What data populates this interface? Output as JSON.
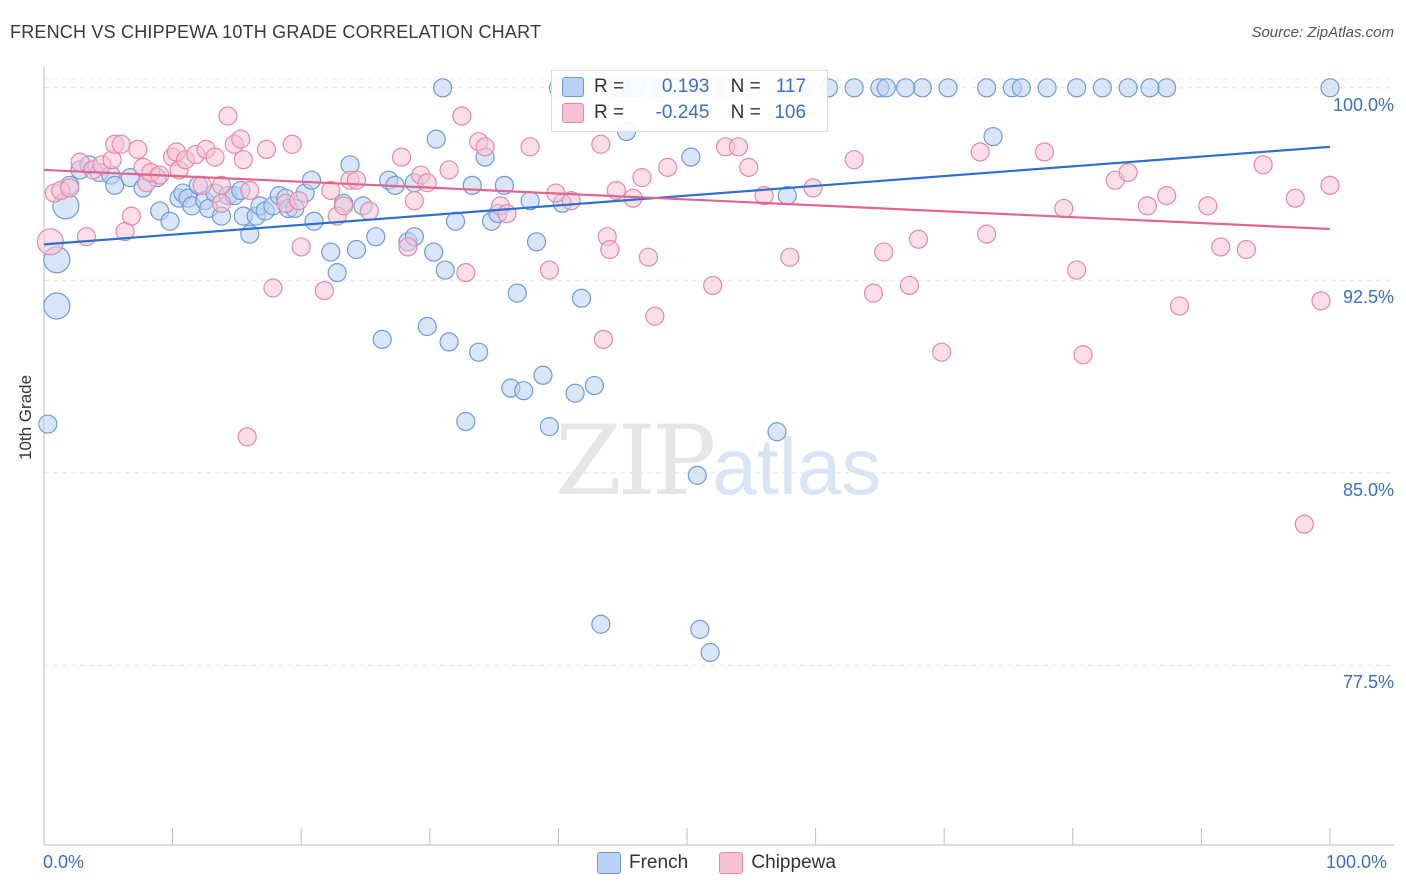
{
  "title": "FRENCH VS CHIPPEWA 10TH GRADE CORRELATION CHART",
  "source": "Source: ZipAtlas.com",
  "watermark": {
    "zip": "ZIP",
    "atlas": "atlas"
  },
  "stats": {
    "french": {
      "r_label": "R =",
      "r": "0.193",
      "n_label": "N =",
      "n": "117"
    },
    "chippewa": {
      "r_label": "R =",
      "r": "-0.245",
      "n_label": "N =",
      "n": "106"
    }
  },
  "colors": {
    "french_fill": "#b9d1f5",
    "french_stroke": "#6f9ad9",
    "french_line": "#2c6fcf",
    "chippewa_fill": "#f7c3d3",
    "chippewa_stroke": "#e38aa7",
    "chippewa_line": "#e06690",
    "tick_text": "#3a6fc9"
  },
  "chart_data": {
    "type": "scatter",
    "title": "FRENCH VS CHIPPEWA 10TH GRADE CORRELATION CHART",
    "xlabel": "",
    "ylabel": "10th Grade",
    "xlim": [
      0,
      100
    ],
    "ylim": [
      70.5,
      101.2
    ],
    "x_tick_labels": [
      "0.0%",
      "100.0%"
    ],
    "y_ticks": [
      100.0,
      92.5,
      85.0,
      77.5
    ],
    "y_tick_labels": [
      "100.0%",
      "92.5%",
      "85.0%",
      "77.5%"
    ],
    "grid": true,
    "legend_position": "bottom-center",
    "series": [
      {
        "name": "French",
        "trend": [
          [
            0,
            93.9
          ],
          [
            100,
            97.7
          ]
        ],
        "points": [
          [
            0.3,
            86.9
          ],
          [
            1.0,
            93.3
          ],
          [
            1.0,
            91.5
          ],
          [
            1.7,
            95.4
          ],
          [
            2.0,
            96.2
          ],
          [
            2.8,
            96.8
          ],
          [
            3.5,
            97.0
          ],
          [
            4.3,
            96.7
          ],
          [
            5.2,
            96.6
          ],
          [
            5.5,
            96.2
          ],
          [
            6.7,
            96.5
          ],
          [
            7.7,
            96.1
          ],
          [
            8.8,
            96.5
          ],
          [
            9.0,
            95.2
          ],
          [
            9.8,
            94.8
          ],
          [
            10.5,
            95.7
          ],
          [
            10.8,
            95.9
          ],
          [
            11.2,
            95.7
          ],
          [
            11.5,
            95.4
          ],
          [
            12.0,
            96.2
          ],
          [
            12.5,
            95.6
          ],
          [
            12.8,
            95.3
          ],
          [
            13.3,
            95.9
          ],
          [
            13.8,
            95.0
          ],
          [
            14.3,
            95.8
          ],
          [
            14.8,
            95.8
          ],
          [
            15.3,
            96.0
          ],
          [
            15.5,
            95.0
          ],
          [
            16.0,
            94.3
          ],
          [
            16.5,
            95.0
          ],
          [
            16.8,
            95.4
          ],
          [
            17.2,
            95.2
          ],
          [
            17.8,
            95.4
          ],
          [
            18.3,
            95.8
          ],
          [
            18.8,
            95.7
          ],
          [
            19.0,
            95.3
          ],
          [
            19.5,
            95.3
          ],
          [
            20.3,
            95.9
          ],
          [
            20.8,
            96.4
          ],
          [
            21.0,
            94.8
          ],
          [
            22.3,
            93.6
          ],
          [
            22.8,
            92.8
          ],
          [
            23.3,
            95.5
          ],
          [
            23.8,
            97.0
          ],
          [
            24.3,
            93.7
          ],
          [
            24.8,
            95.4
          ],
          [
            25.8,
            94.2
          ],
          [
            26.3,
            90.2
          ],
          [
            26.8,
            96.4
          ],
          [
            27.3,
            96.2
          ],
          [
            28.3,
            94.0
          ],
          [
            28.8,
            94.2
          ],
          [
            28.8,
            96.3
          ],
          [
            29.8,
            90.7
          ],
          [
            30.3,
            93.6
          ],
          [
            30.5,
            98.0
          ],
          [
            31.2,
            92.9
          ],
          [
            31.5,
            90.1
          ],
          [
            32.0,
            94.8
          ],
          [
            32.8,
            87.0
          ],
          [
            33.3,
            96.2
          ],
          [
            33.8,
            89.7
          ],
          [
            34.3,
            97.3
          ],
          [
            34.8,
            94.8
          ],
          [
            35.3,
            95.1
          ],
          [
            35.8,
            96.2
          ],
          [
            36.3,
            88.3
          ],
          [
            36.8,
            92.0
          ],
          [
            37.3,
            88.2
          ],
          [
            37.8,
            95.6
          ],
          [
            38.3,
            94.0
          ],
          [
            38.8,
            88.8
          ],
          [
            39.3,
            86.8
          ],
          [
            40.3,
            95.5
          ],
          [
            41.3,
            88.1
          ],
          [
            41.8,
            91.8
          ],
          [
            42.8,
            88.4
          ],
          [
            43.3,
            79.1
          ],
          [
            44.8,
            100.0
          ],
          [
            45.5,
            100.0
          ],
          [
            45.3,
            98.3
          ],
          [
            47.0,
            100.0
          ],
          [
            50.3,
            97.3
          ],
          [
            50.8,
            84.9
          ],
          [
            51.0,
            78.9
          ],
          [
            51.8,
            78.0
          ],
          [
            57.0,
            86.6
          ],
          [
            57.8,
            95.8
          ],
          [
            61.0,
            100.0
          ],
          [
            65.0,
            100.0
          ],
          [
            65.5,
            100.0
          ],
          [
            68.3,
            100.0
          ],
          [
            70.3,
            100.0
          ],
          [
            73.3,
            100.0
          ],
          [
            73.8,
            98.1
          ],
          [
            75.3,
            100.0
          ],
          [
            80.3,
            100.0
          ],
          [
            82.3,
            100.0
          ],
          [
            84.3,
            100.0
          ],
          [
            87.3,
            100.0
          ],
          [
            100.0,
            100.0
          ],
          [
            31.0,
            100.0
          ],
          [
            40.0,
            100.0
          ],
          [
            42.0,
            100.0
          ],
          [
            44.0,
            100.0
          ],
          [
            48.0,
            100.0
          ],
          [
            49.0,
            100.0
          ],
          [
            53.0,
            100.0
          ],
          [
            55.0,
            100.0
          ],
          [
            59.0,
            100.0
          ],
          [
            63.0,
            100.0
          ],
          [
            67.0,
            100.0
          ],
          [
            78.0,
            100.0
          ],
          [
            86.0,
            100.0
          ],
          [
            76.0,
            100.0
          ],
          [
            58.0,
            100.0
          ],
          [
            52.0,
            100.0
          ],
          [
            46.0,
            100.0
          ]
        ]
      },
      {
        "name": "Chippewa",
        "trend": [
          [
            0,
            96.8
          ],
          [
            100,
            94.5
          ]
        ],
        "points": [
          [
            0.5,
            94.0
          ],
          [
            0.8,
            95.9
          ],
          [
            1.3,
            96.0
          ],
          [
            2.0,
            96.1
          ],
          [
            2.8,
            97.1
          ],
          [
            3.3,
            94.2
          ],
          [
            3.8,
            96.8
          ],
          [
            4.5,
            97.0
          ],
          [
            5.3,
            97.2
          ],
          [
            5.5,
            97.8
          ],
          [
            6.0,
            97.8
          ],
          [
            6.3,
            94.4
          ],
          [
            6.8,
            95.0
          ],
          [
            7.3,
            97.6
          ],
          [
            7.7,
            96.9
          ],
          [
            8.0,
            96.3
          ],
          [
            8.3,
            96.7
          ],
          [
            9.0,
            96.6
          ],
          [
            10.0,
            97.3
          ],
          [
            10.3,
            97.5
          ],
          [
            10.5,
            96.8
          ],
          [
            11.0,
            97.2
          ],
          [
            11.8,
            97.4
          ],
          [
            12.3,
            96.2
          ],
          [
            12.6,
            97.6
          ],
          [
            13.3,
            97.3
          ],
          [
            13.8,
            96.2
          ],
          [
            13.8,
            95.5
          ],
          [
            14.3,
            98.9
          ],
          [
            14.8,
            97.8
          ],
          [
            15.3,
            98.0
          ],
          [
            15.5,
            97.2
          ],
          [
            15.8,
            86.4
          ],
          [
            16.0,
            96.0
          ],
          [
            17.3,
            97.6
          ],
          [
            17.8,
            92.2
          ],
          [
            18.8,
            95.5
          ],
          [
            19.3,
            97.8
          ],
          [
            19.8,
            95.6
          ],
          [
            20.0,
            93.8
          ],
          [
            21.8,
            92.1
          ],
          [
            22.3,
            96.0
          ],
          [
            22.8,
            95.0
          ],
          [
            23.3,
            95.4
          ],
          [
            23.8,
            96.4
          ],
          [
            24.3,
            96.4
          ],
          [
            25.3,
            95.2
          ],
          [
            27.8,
            97.3
          ],
          [
            28.3,
            93.8
          ],
          [
            28.8,
            95.6
          ],
          [
            29.3,
            96.6
          ],
          [
            29.8,
            96.3
          ],
          [
            31.5,
            96.8
          ],
          [
            32.5,
            98.9
          ],
          [
            32.8,
            92.8
          ],
          [
            33.8,
            97.9
          ],
          [
            34.3,
            97.7
          ],
          [
            35.5,
            95.4
          ],
          [
            36.0,
            95.1
          ],
          [
            37.8,
            97.7
          ],
          [
            39.3,
            92.9
          ],
          [
            39.8,
            95.9
          ],
          [
            40.5,
            100.0
          ],
          [
            41.0,
            95.6
          ],
          [
            43.3,
            97.8
          ],
          [
            43.5,
            90.2
          ],
          [
            43.8,
            94.2
          ],
          [
            44.0,
            93.7
          ],
          [
            44.5,
            96.0
          ],
          [
            45.8,
            95.7
          ],
          [
            46.5,
            96.5
          ],
          [
            47.0,
            93.4
          ],
          [
            47.5,
            91.1
          ],
          [
            48.5,
            96.9
          ],
          [
            52.0,
            92.3
          ],
          [
            53.0,
            97.7
          ],
          [
            53.3,
            100.0
          ],
          [
            54.0,
            97.7
          ],
          [
            54.8,
            96.9
          ],
          [
            56.0,
            95.8
          ],
          [
            58.0,
            93.4
          ],
          [
            59.8,
            96.1
          ],
          [
            63.0,
            97.2
          ],
          [
            64.5,
            92.0
          ],
          [
            65.3,
            93.6
          ],
          [
            67.3,
            92.3
          ],
          [
            68.0,
            94.1
          ],
          [
            69.8,
            89.7
          ],
          [
            72.8,
            97.5
          ],
          [
            73.3,
            94.3
          ],
          [
            77.8,
            97.5
          ],
          [
            79.3,
            95.3
          ],
          [
            80.3,
            92.9
          ],
          [
            80.8,
            89.6
          ],
          [
            83.3,
            96.4
          ],
          [
            84.3,
            96.7
          ],
          [
            85.8,
            95.4
          ],
          [
            87.3,
            95.8
          ],
          [
            88.3,
            91.5
          ],
          [
            90.5,
            95.4
          ],
          [
            91.5,
            93.8
          ],
          [
            93.5,
            93.7
          ],
          [
            94.8,
            97.0
          ],
          [
            97.3,
            95.7
          ],
          [
            98.0,
            83.0
          ],
          [
            99.3,
            91.7
          ],
          [
            100.0,
            96.2
          ]
        ]
      }
    ]
  },
  "legend": {
    "french": "French",
    "chippewa": "Chippewa"
  }
}
